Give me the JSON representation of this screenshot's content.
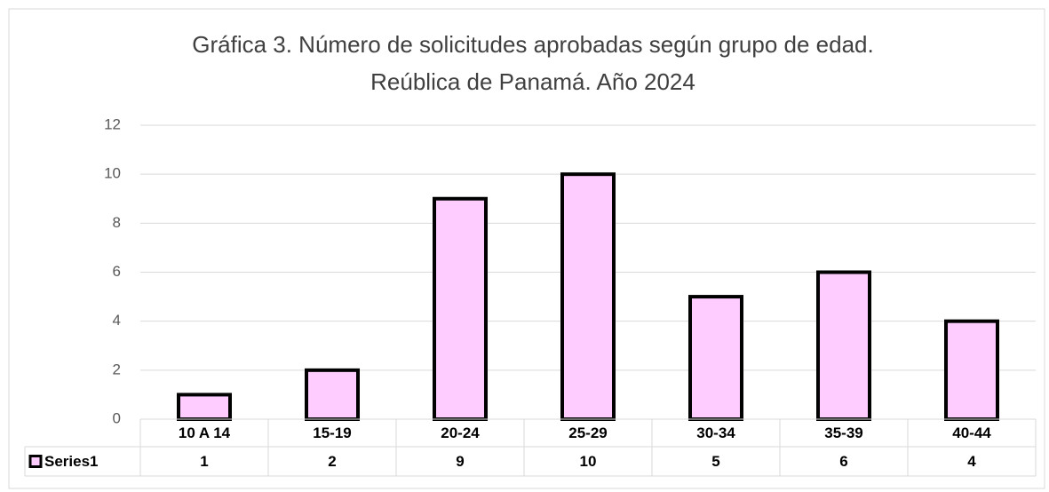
{
  "chart_data": {
    "type": "bar",
    "title": [
      "Gráfica 3. Número de solicitudes aprobadas según grupo de edad.",
      "Reública de Panamá. Año 2024"
    ],
    "categories": [
      "10 A 14",
      "15-19",
      "20-24",
      "25-29",
      "30-34",
      "35-39",
      "40-44"
    ],
    "series": [
      {
        "name": "Series1",
        "color": "#ffccff",
        "values": [
          1,
          2,
          9,
          10,
          5,
          6,
          4
        ]
      }
    ],
    "ylim": [
      0,
      12
    ],
    "yticks": [
      0,
      2,
      4,
      6,
      8,
      10,
      12
    ],
    "grid": true,
    "data_table": true
  }
}
